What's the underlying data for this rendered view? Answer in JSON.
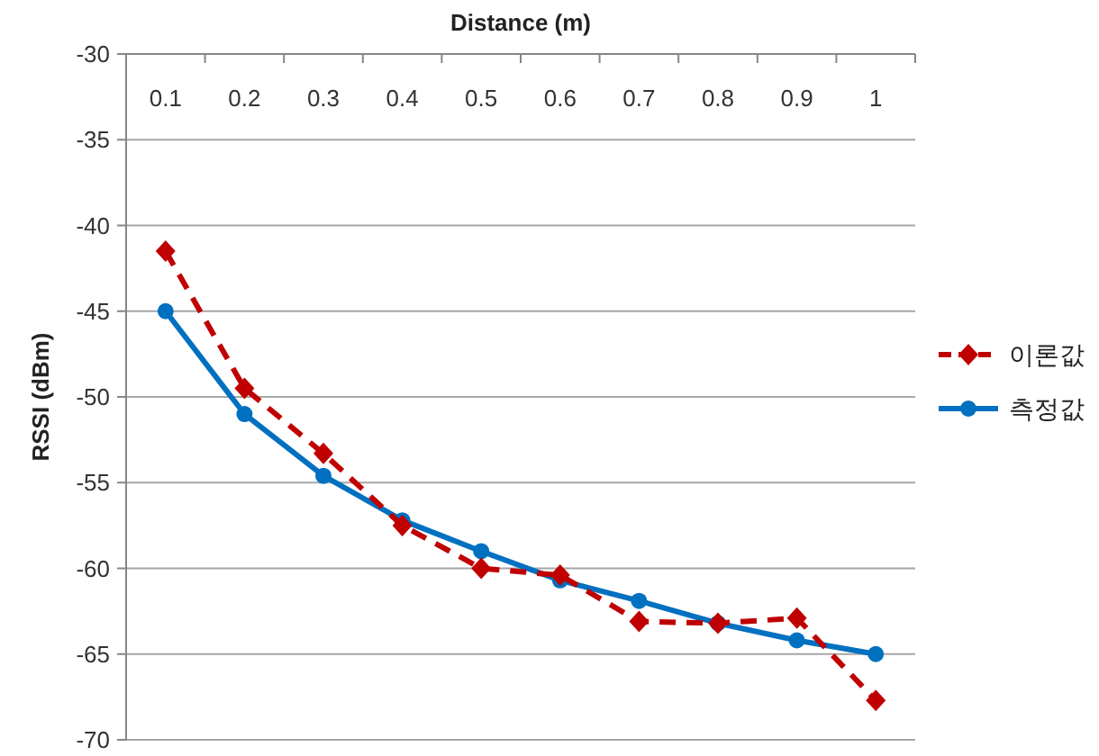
{
  "chart_data": {
    "type": "line",
    "xlabel": "Distance (m)",
    "ylabel": "RSSI (dBm)",
    "categories": [
      "0.1",
      "0.2",
      "0.3",
      "0.4",
      "0.5",
      "0.6",
      "0.7",
      "0.8",
      "0.9",
      "1"
    ],
    "series": [
      {
        "name": "이론값",
        "color": "#c00000",
        "marker": "diamond",
        "line_style": "dashed",
        "values": [
          -41.5,
          -49.5,
          -53.3,
          -57.5,
          -60.0,
          -60.4,
          -63.1,
          -63.2,
          -62.9,
          -67.7
        ]
      },
      {
        "name": "측정값",
        "color": "#0070c0",
        "marker": "circle",
        "line_style": "solid",
        "values": [
          -45.0,
          -51.0,
          -54.6,
          -57.2,
          -59.0,
          -60.7,
          -61.9,
          -63.2,
          -64.2,
          -65.0
        ]
      }
    ],
    "ylim": [
      -70,
      -30
    ],
    "yticks": [
      -70,
      -65,
      -60,
      -55,
      -50,
      -45,
      -40,
      -35,
      -30
    ],
    "grid": "y",
    "legend": "right"
  }
}
